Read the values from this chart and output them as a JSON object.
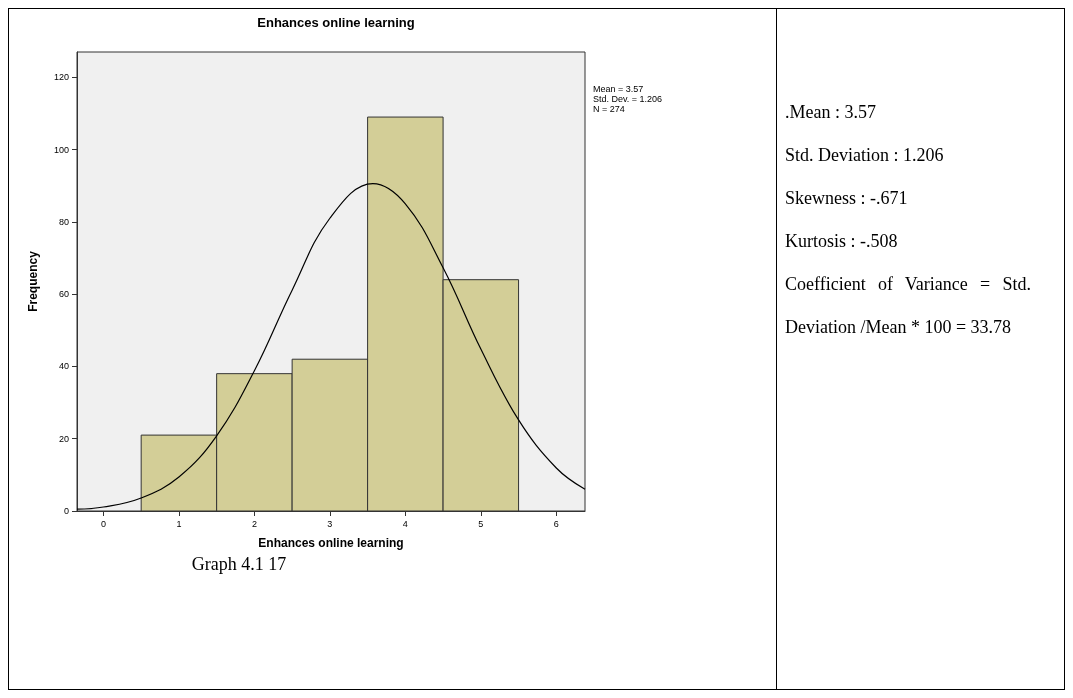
{
  "chart_data": {
    "type": "histogram",
    "title": "Enhances online learning",
    "xlabel": "Enhances online learning",
    "ylabel": "Frequency",
    "bins": [
      0.5,
      1.5,
      2.5,
      3.5,
      4.5,
      5.5
    ],
    "values": [
      21,
      38,
      42,
      109,
      64
    ],
    "color": "#d3ce97",
    "series": [
      {
        "type": "line",
        "color": "#000000",
        "x": [
          -0.35,
          0,
          0.5,
          1,
          1.5,
          2,
          2.5,
          3,
          3.57,
          4,
          4.5,
          5,
          5.5,
          6,
          6.38
        ],
        "values": [
          0.5,
          1.1,
          3.6,
          9.4,
          20.8,
          38.8,
          61.1,
          81.0,
          90.6,
          85.0,
          67.3,
          44.8,
          25.2,
          11.9,
          6.0
        ]
      }
    ],
    "xlim": [
      -0.35,
      6.38
    ],
    "xticks": [
      0,
      1,
      2,
      3,
      4,
      5,
      6
    ],
    "ylim": [
      0,
      127
    ],
    "yticks": [
      0,
      20,
      40,
      60,
      80,
      100,
      120
    ],
    "marker": "none",
    "annotations": [
      "Mean = 3.57",
      "Std. Dev. = 1.206",
      "N = 274",
      "Graph 4.1 17",
      ".Mean : 3.57",
      "Std. Deviation : 1.206",
      "Skewness : -.671",
      "Kurtosis : -.508",
      "Coefficient of Variance = Std. Deviation /Mean * 100 = 33.78"
    ]
  }
}
